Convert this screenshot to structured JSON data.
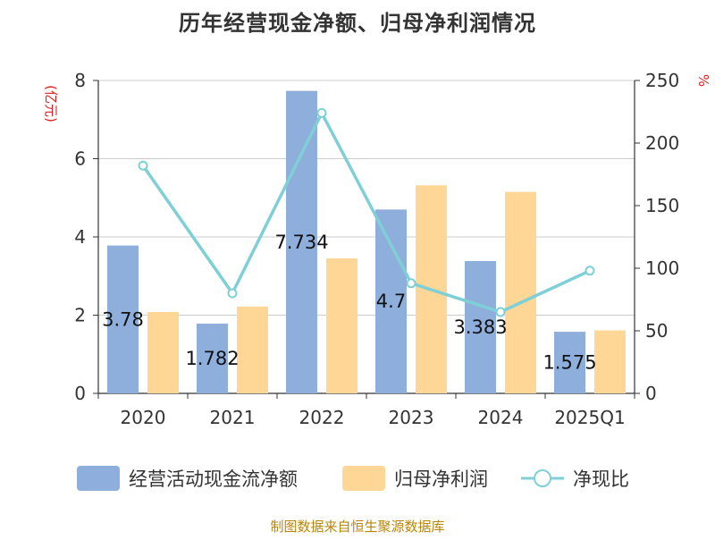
{
  "title": "历年经营现金净额、归母净利润情况",
  "source": "制图数据来自恒生聚源数据库",
  "chart_data": {
    "type": "bar",
    "categories": [
      "2020",
      "2021",
      "2022",
      "2023",
      "2024",
      "2025Q1"
    ],
    "series": [
      {
        "name": "经营活动现金流净额",
        "type": "bar",
        "axis": "left",
        "color": "#8eaedb",
        "values": [
          3.78,
          1.782,
          7.734,
          4.7,
          3.383,
          1.575
        ],
        "labels": [
          "3.78",
          "1.782",
          "7.734",
          "4.7",
          "3.383",
          "1.575"
        ]
      },
      {
        "name": "归母净利润",
        "type": "bar",
        "axis": "left",
        "color": "#fed796",
        "values": [
          2.08,
          2.22,
          3.45,
          5.32,
          5.15,
          1.61
        ]
      },
      {
        "name": "净现比",
        "type": "line",
        "axis": "right",
        "color": "#7fd0d6",
        "values": [
          182,
          80,
          224,
          88,
          65,
          98
        ]
      }
    ],
    "ylabel_left": "(亿元)",
    "ylabel_right": "%",
    "ylim_left": [
      0,
      8
    ],
    "yticks_left": [
      0,
      2,
      4,
      6,
      8
    ],
    "ylim_right": [
      0,
      250
    ],
    "yticks_right": [
      0,
      50,
      100,
      150,
      200,
      250
    ],
    "grid": true,
    "legend_position": "bottom",
    "axis_label_color": "#e02020"
  }
}
